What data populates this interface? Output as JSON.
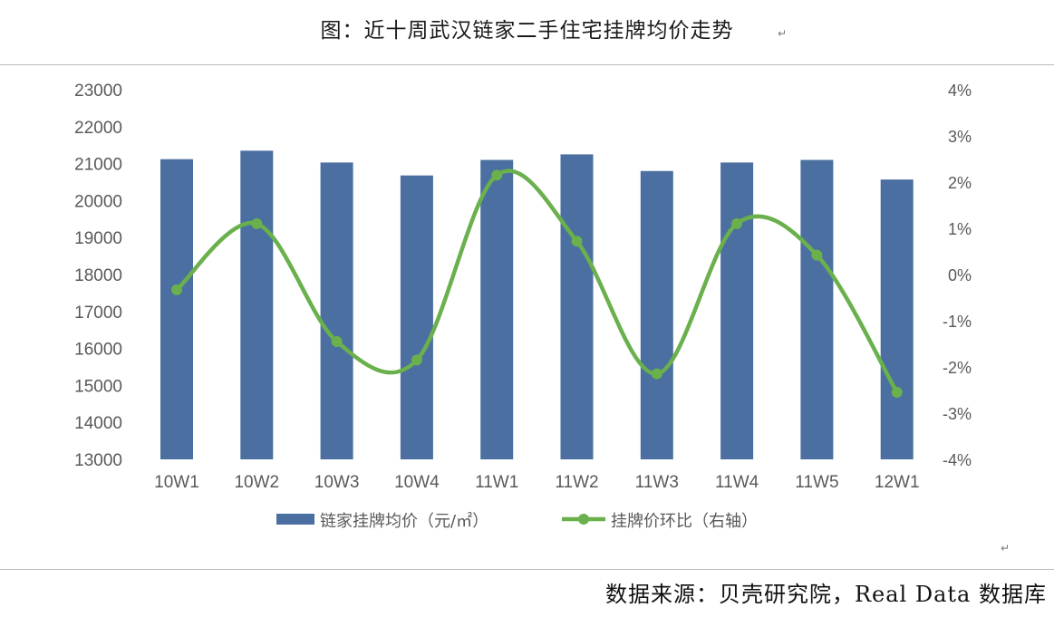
{
  "title": "图：近十周武汉链家二手住宅挂牌均价走势",
  "source": "数据来源：贝壳研究院，Real Data 数据库",
  "paragraph_mark": "↵",
  "chart_data": {
    "type": "bar",
    "categories": [
      "10W1",
      "10W2",
      "10W3",
      "10W4",
      "11W1",
      "11W2",
      "11W3",
      "11W4",
      "11W5",
      "12W1"
    ],
    "series": [
      {
        "name": "链家挂牌均价（元/㎡）",
        "type": "bar",
        "axis": "left",
        "color": "#4a6fa0",
        "values": [
          21120,
          21350,
          21030,
          20680,
          21100,
          21250,
          20800,
          21030,
          21100,
          20570
        ]
      },
      {
        "name": "挂牌价环比（右轴）",
        "type": "line",
        "axis": "right",
        "smooth": true,
        "color": "#6ab04c",
        "values": [
          -0.33,
          1.1,
          -1.45,
          -1.85,
          2.15,
          0.72,
          -2.15,
          1.1,
          0.42,
          -2.55
        ]
      }
    ],
    "left_axis": {
      "ylim": [
        13000,
        23000
      ],
      "ticks": [
        "23000",
        "22000",
        "21000",
        "20000",
        "19000",
        "18000",
        "17000",
        "16000",
        "15000",
        "14000",
        "13000"
      ]
    },
    "right_axis": {
      "ylim": [
        -4,
        4
      ],
      "ticks": [
        "4%",
        "3%",
        "2%",
        "1%",
        "0%",
        "-1%",
        "-2%",
        "-3%",
        "-4%"
      ]
    },
    "grid": false,
    "legend": "bottom"
  }
}
